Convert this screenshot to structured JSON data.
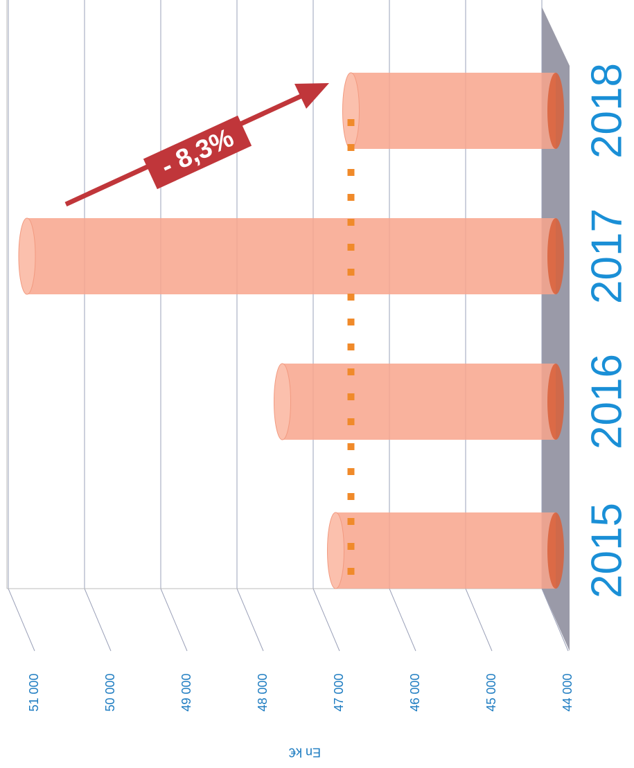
{
  "chart_data": {
    "type": "bar",
    "y_label": "En k€",
    "categories": [
      "2015",
      "2016",
      "2017",
      "2018"
    ],
    "values": [
      47050,
      47750,
      51100,
      46850
    ],
    "color": "#f8a58c",
    "ylim": [
      44000,
      51000
    ],
    "yticks": [
      {
        "value": 44000,
        "label": "44 000"
      },
      {
        "value": 45000,
        "label": "45 000"
      },
      {
        "value": 46000,
        "label": "46 000"
      },
      {
        "value": 47000,
        "label": "47 000"
      },
      {
        "value": 48000,
        "label": "48 000"
      },
      {
        "value": 49000,
        "label": "49 000"
      },
      {
        "value": 50000,
        "label": "50 000"
      },
      {
        "value": 51000,
        "label": "51 000"
      }
    ],
    "grid": true,
    "annotation": "- 8,3%"
  }
}
